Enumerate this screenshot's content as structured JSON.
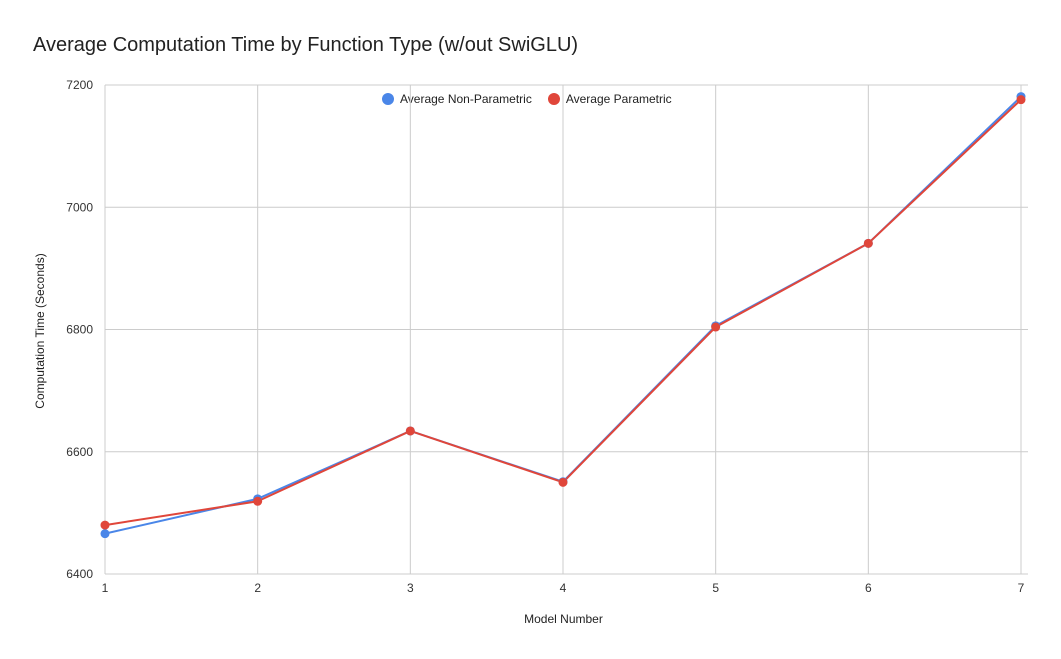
{
  "chart_data": {
    "type": "line",
    "title": "Average Computation Time by Function Type (w/out SwiGLU)",
    "xlabel": "Model Number",
    "ylabel": "Computation Time (Seconds)",
    "x": [
      1,
      2,
      3,
      4,
      5,
      6,
      7
    ],
    "xlim": [
      1,
      7
    ],
    "ylim": [
      6400,
      7200
    ],
    "yticks": [
      6400,
      6600,
      6800,
      7000,
      7200
    ],
    "grid": true,
    "legend_position": "top",
    "series": [
      {
        "name": "Average Non-Parametric",
        "color": "#4a86e8",
        "values": [
          6466,
          6523,
          6634,
          6551,
          6806,
          6941,
          7181
        ]
      },
      {
        "name": "Average Parametric",
        "color": "#e0463a",
        "values": [
          6480,
          6519,
          6634,
          6550,
          6804,
          6941,
          7176
        ]
      }
    ]
  }
}
